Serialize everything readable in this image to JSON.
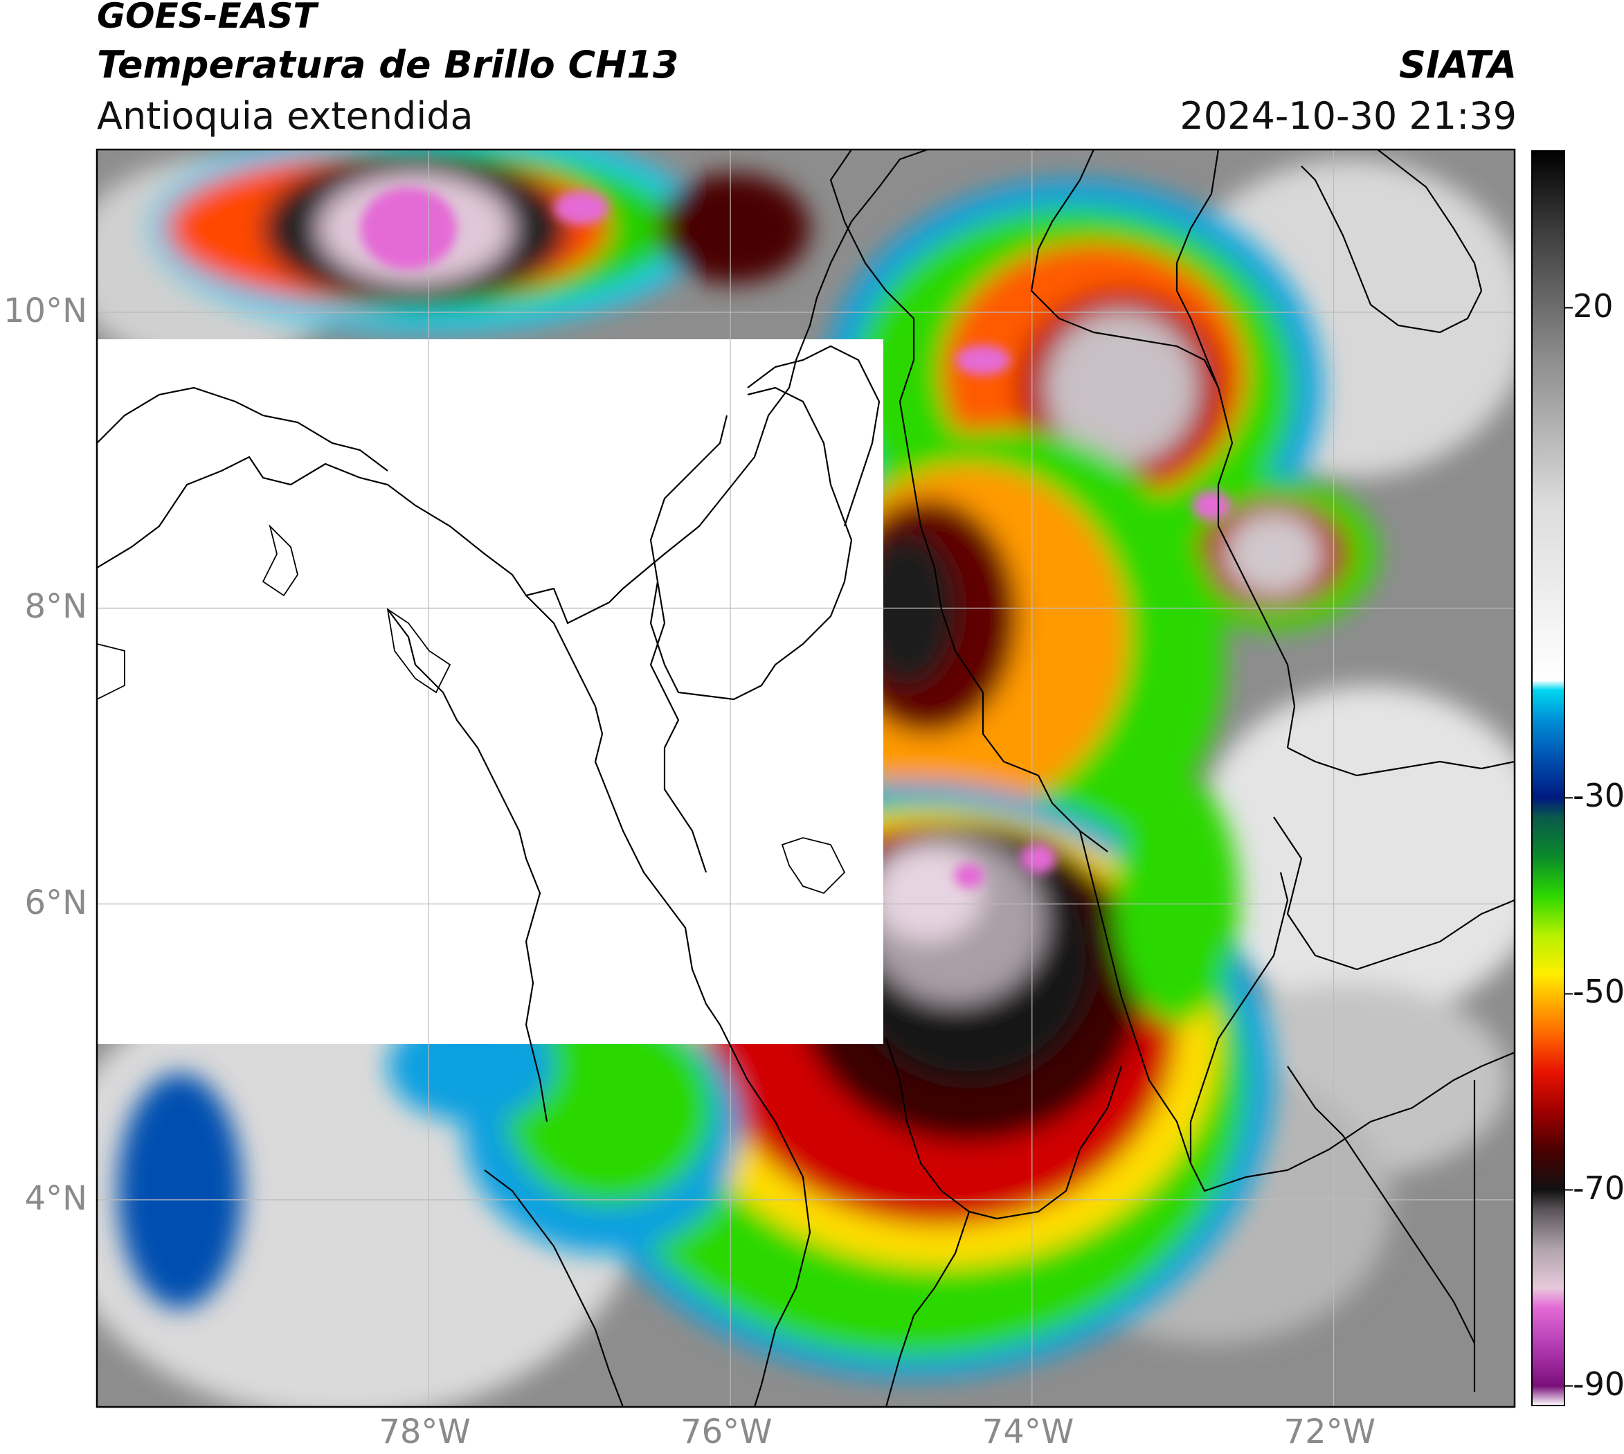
{
  "header": {
    "satellite": "GOES-EAST",
    "product": "Temperatura de Brillo CH13",
    "region": "Antioquia extendida",
    "agency": "SIATA",
    "datetime": "2024-10-30 21:39"
  },
  "axes": {
    "lat_labels": [
      "10°N",
      "8°N",
      "6°N",
      "4°N"
    ],
    "lon_labels": [
      "78°W",
      "76°W",
      "74°W",
      "72°W"
    ],
    "lat_range": [
      2.6,
      11.1
    ],
    "lon_range": [
      -80.2,
      -70.8
    ],
    "grid": true
  },
  "colorbar": {
    "ticks": [
      "20",
      "-30",
      "-50",
      "-70",
      "-90"
    ],
    "tick_values": [
      20,
      -30,
      -50,
      -70,
      -90
    ],
    "range": [
      -92,
      36
    ],
    "stops": [
      {
        "v": -92,
        "c": "#ffffff"
      },
      {
        "v": -90,
        "c": "#7a0f7a"
      },
      {
        "v": -86,
        "c": "#b23ab2"
      },
      {
        "v": -82,
        "c": "#e46ad6"
      },
      {
        "v": -80,
        "c": "#e8c9dc"
      },
      {
        "v": -76,
        "c": "#b0a4ac"
      },
      {
        "v": -72,
        "c": "#5a5358"
      },
      {
        "v": -70,
        "c": "#111111"
      },
      {
        "v": -66,
        "c": "#4a0000"
      },
      {
        "v": -62,
        "c": "#a00000"
      },
      {
        "v": -58,
        "c": "#e81200"
      },
      {
        "v": -54,
        "c": "#ff6a00"
      },
      {
        "v": -51,
        "c": "#ffaa00"
      },
      {
        "v": -48,
        "c": "#ffee00"
      },
      {
        "v": -44,
        "c": "#b6f000"
      },
      {
        "v": -40,
        "c": "#2cd800"
      },
      {
        "v": -36,
        "c": "#0a8a2a"
      },
      {
        "v": -32,
        "c": "#0a5a4a"
      },
      {
        "v": -30,
        "c": "#001a80"
      },
      {
        "v": -26,
        "c": "#0050b0"
      },
      {
        "v": -22,
        "c": "#0090d8"
      },
      {
        "v": -19,
        "c": "#00d8f0"
      },
      {
        "v": -18,
        "c": "#ffffff"
      },
      {
        "v": 0,
        "c": "#dcdcdc"
      },
      {
        "v": 15,
        "c": "#8c8c8c"
      },
      {
        "v": 28,
        "c": "#3c3c3c"
      },
      {
        "v": 36,
        "c": "#000000"
      }
    ]
  },
  "colors": {
    "background_warm": "#8a8a8a",
    "mask": "#ffffff",
    "borders": "#000000",
    "grid": "#cccccc"
  }
}
